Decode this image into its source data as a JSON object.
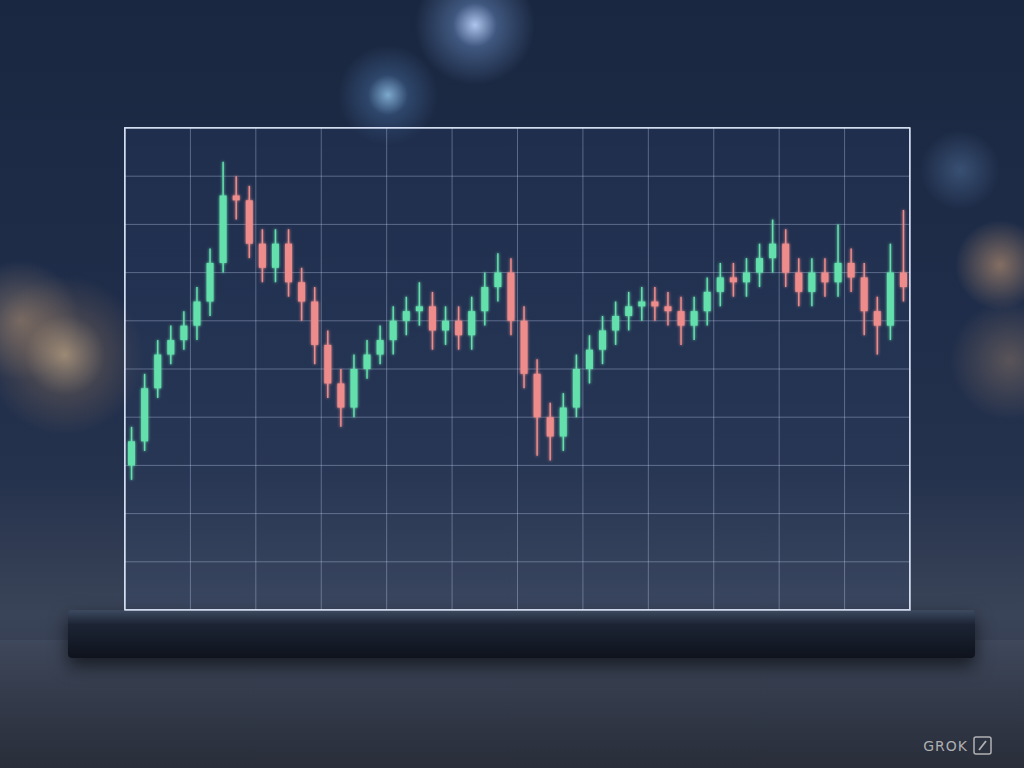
{
  "chart_data": {
    "type": "candlestick",
    "x": [
      0.1,
      0.3,
      0.5,
      0.7,
      0.9,
      1.1,
      1.3,
      1.5,
      1.7,
      1.9,
      2.1,
      2.3,
      2.5,
      2.7,
      2.9,
      3.1,
      3.3,
      3.5,
      3.7,
      3.9,
      4.1,
      4.3,
      4.5,
      4.7,
      4.9,
      5.1,
      5.3,
      5.5,
      5.7,
      5.9,
      6.1,
      6.3,
      6.5,
      6.7,
      6.9,
      7.1,
      7.3,
      7.5,
      7.7,
      7.9,
      8.1,
      8.3,
      8.5,
      8.7,
      8.9,
      9.1,
      9.3,
      9.5,
      9.7,
      9.9,
      10.1,
      10.3,
      10.5,
      10.7,
      10.9,
      11.1,
      11.3,
      11.5,
      11.7,
      11.9
    ],
    "series": [
      {
        "open": [
          3.0,
          3.5,
          4.6,
          5.3,
          5.6,
          5.9,
          6.4,
          7.2,
          8.6,
          8.5,
          7.6,
          7.1,
          7.6,
          6.8,
          6.4,
          5.5,
          4.7,
          4.2,
          5.0,
          5.3,
          5.6,
          6.0,
          6.2,
          6.3,
          5.8,
          6.0,
          5.7,
          6.2,
          6.7,
          7.0,
          6.0,
          4.9,
          4.0,
          3.6,
          4.2,
          5.0,
          5.4,
          5.8,
          6.1,
          6.3,
          6.4,
          6.3,
          6.2,
          5.9,
          6.2,
          6.6,
          6.9,
          6.8,
          7.0,
          7.3,
          7.6,
          7.0,
          6.6,
          7.0,
          6.8,
          7.2,
          6.9,
          6.2,
          5.9,
          7.0
        ],
        "high": [
          3.8,
          4.9,
          5.6,
          5.9,
          6.2,
          6.7,
          7.5,
          9.3,
          9.0,
          8.8,
          7.9,
          7.9,
          7.9,
          7.1,
          6.7,
          5.8,
          5.0,
          5.3,
          5.6,
          5.9,
          6.3,
          6.5,
          6.8,
          6.6,
          6.3,
          6.3,
          6.5,
          7.0,
          7.4,
          7.3,
          6.3,
          5.2,
          4.3,
          4.5,
          5.3,
          5.7,
          6.1,
          6.4,
          6.6,
          6.7,
          6.7,
          6.6,
          6.5,
          6.5,
          6.9,
          7.2,
          7.2,
          7.3,
          7.6,
          8.1,
          7.9,
          7.3,
          7.3,
          7.3,
          8.0,
          7.5,
          7.2,
          6.5,
          7.6,
          8.3
        ],
        "low": [
          2.7,
          3.3,
          4.4,
          5.1,
          5.4,
          5.6,
          6.1,
          7.0,
          8.1,
          7.3,
          6.8,
          6.8,
          6.5,
          6.0,
          5.1,
          4.4,
          3.8,
          4.0,
          4.8,
          5.1,
          5.3,
          5.7,
          5.9,
          5.4,
          5.5,
          5.4,
          5.4,
          5.9,
          6.4,
          5.7,
          4.6,
          3.2,
          3.1,
          3.3,
          4.0,
          4.7,
          5.1,
          5.5,
          5.8,
          6.0,
          6.0,
          5.9,
          5.5,
          5.6,
          5.9,
          6.3,
          6.5,
          6.5,
          6.7,
          7.0,
          6.7,
          6.3,
          6.3,
          6.5,
          6.5,
          6.6,
          5.7,
          5.3,
          5.6,
          6.4
        ],
        "close": [
          3.5,
          4.6,
          5.3,
          5.6,
          5.9,
          6.4,
          7.2,
          8.6,
          8.5,
          7.6,
          7.1,
          7.6,
          6.8,
          6.4,
          5.5,
          4.7,
          4.2,
          5.0,
          5.3,
          5.6,
          6.0,
          6.2,
          6.3,
          5.8,
          6.0,
          5.7,
          6.2,
          6.7,
          7.0,
          6.0,
          4.9,
          4.0,
          3.6,
          4.2,
          5.0,
          5.4,
          5.8,
          6.1,
          6.3,
          6.4,
          6.3,
          6.2,
          5.9,
          6.2,
          6.6,
          6.9,
          6.8,
          7.0,
          7.3,
          7.6,
          7.0,
          6.6,
          7.0,
          6.8,
          7.2,
          6.9,
          6.2,
          5.9,
          7.0,
          6.7
        ]
      }
    ],
    "xlim": [
      0,
      12
    ],
    "xticks": [
      0,
      1,
      2,
      3,
      4,
      5,
      6,
      7,
      8,
      9,
      10,
      11,
      12
    ],
    "ylim": [
      0,
      10
    ],
    "yticks": [
      0,
      1,
      2,
      3,
      4,
      5,
      6,
      7,
      8,
      9,
      10
    ],
    "grid": true,
    "tick_labels": false,
    "annotations": [
      "GROK"
    ]
  }
}
